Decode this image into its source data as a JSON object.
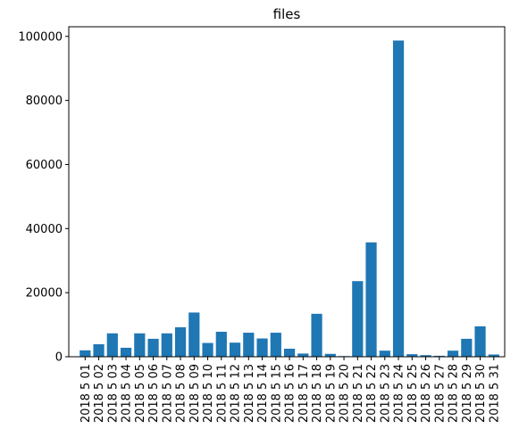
{
  "chart_data": {
    "type": "bar",
    "title": "files",
    "xlabel": "",
    "ylabel": "",
    "ylim": [
      0,
      103000
    ],
    "yticks": [
      0,
      20000,
      40000,
      60000,
      80000,
      100000
    ],
    "color": "#1f77b4",
    "grid": false,
    "categories": [
      "2018 5 01",
      "2018 5 02",
      "2018 5 03",
      "2018 5 04",
      "2018 5 05",
      "2018 5 06",
      "2018 5 07",
      "2018 5 08",
      "2018 5 09",
      "2018 5 10",
      "2018 5 11",
      "2018 5 12",
      "2018 5 13",
      "2018 5 14",
      "2018 5 15",
      "2018 5 16",
      "2018 5 17",
      "2018 5 18",
      "2018 5 19",
      "2018 5 20",
      "2018 5 21",
      "2018 5 22",
      "2018 5 23",
      "2018 5 24",
      "2018 5 25",
      "2018 5 26",
      "2018 5 27",
      "2018 5 28",
      "2018 5 29",
      "2018 5 30",
      "2018 5 31"
    ],
    "values": [
      2000,
      3900,
      7300,
      2800,
      7300,
      5600,
      7300,
      9200,
      13800,
      4300,
      7800,
      4400,
      7500,
      5700,
      7500,
      2500,
      1000,
      13400,
      900,
      200,
      23600,
      35700,
      1900,
      98700,
      800,
      500,
      300,
      1900,
      5600,
      9500,
      700
    ]
  }
}
